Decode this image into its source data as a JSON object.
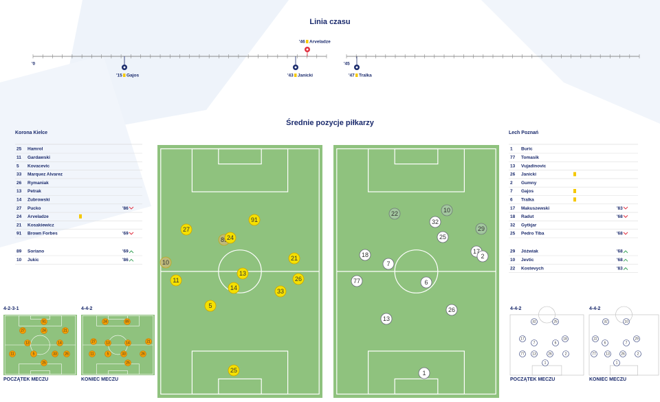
{
  "timeline": {
    "title": "Linia czasu",
    "start": "'0",
    "second_half": "'45",
    "events": [
      {
        "minute": "'15",
        "player": "Gajos",
        "card": true,
        "side": "bottom"
      },
      {
        "minute": "'43",
        "player": "Janicki",
        "card": true,
        "side": "bottom"
      },
      {
        "minute": "'46",
        "player": "Arveladze",
        "card": true,
        "side": "top"
      },
      {
        "minute": "'47",
        "player": "Tralka",
        "card": true,
        "side": "bottom"
      }
    ]
  },
  "positions": {
    "title": "Średnie pozycje piłkarzy"
  },
  "teams": [
    {
      "name": "Korona Kielce",
      "players": [
        {
          "number": 25,
          "name": "Hamrol"
        },
        {
          "number": 11,
          "name": "Gardawski"
        },
        {
          "number": 5,
          "name": "Kovacevic"
        },
        {
          "number": 33,
          "name": "Marquez Alvarez"
        },
        {
          "number": 26,
          "name": "Rymaniak"
        },
        {
          "number": 13,
          "name": "Petrak"
        },
        {
          "number": 14,
          "name": "Zubrowski"
        },
        {
          "number": 27,
          "name": "Pucko",
          "sub": "'86"
        },
        {
          "number": 24,
          "name": "Arveladze",
          "card": true
        },
        {
          "number": 21,
          "name": "Kosakiewicz"
        },
        {
          "number": 91,
          "name": "Brown Forbes",
          "sub": "'69"
        }
      ],
      "subs": [
        {
          "number": 89,
          "name": "Soriano",
          "sub": "'69"
        },
        {
          "number": 10,
          "name": "Jukic",
          "sub": "'86"
        }
      ]
    },
    {
      "name": "Lech Poznań",
      "players": [
        {
          "number": 1,
          "name": "Buric"
        },
        {
          "number": 77,
          "name": "Tomasik"
        },
        {
          "number": 13,
          "name": "Vujadinovic"
        },
        {
          "number": 26,
          "name": "Janicki",
          "card": true
        },
        {
          "number": 2,
          "name": "Gumny"
        },
        {
          "number": 7,
          "name": "Gajos",
          "card": true
        },
        {
          "number": 6,
          "name": "Tralka",
          "card": true
        },
        {
          "number": 17,
          "name": "Makuszewski",
          "sub": "'83"
        },
        {
          "number": 18,
          "name": "Radut",
          "sub": "'68"
        },
        {
          "number": 32,
          "name": "Gytkjar"
        },
        {
          "number": 25,
          "name": "Pedro Tiba",
          "sub": "'68"
        }
      ],
      "subs": [
        {
          "number": 29,
          "name": "Jóźwiak",
          "sub": "'68"
        },
        {
          "number": 10,
          "name": "Jevtic",
          "sub": "'68"
        },
        {
          "number": 22,
          "name": "Kostevych",
          "sub": "'83"
        }
      ]
    }
  ],
  "pitch_markers": [
    [
      {
        "number": 27
      },
      {
        "number": 91
      },
      {
        "number": 89,
        "faded": true
      },
      {
        "number": 24
      },
      {
        "number": 10,
        "faded": true
      },
      {
        "number": 21
      },
      {
        "number": 13
      },
      {
        "number": 11
      },
      {
        "number": 26
      },
      {
        "number": 14
      },
      {
        "number": 33
      },
      {
        "number": 5
      },
      {
        "number": 25
      }
    ],
    [
      {
        "number": 22,
        "faded": true
      },
      {
        "number": 10,
        "faded": true
      },
      {
        "number": 32
      },
      {
        "number": 29,
        "faded": true
      },
      {
        "number": 25
      },
      {
        "number": 18
      },
      {
        "number": 17
      },
      {
        "number": 2
      },
      {
        "number": 7
      },
      {
        "number": 77
      },
      {
        "number": 6
      },
      {
        "number": 26
      },
      {
        "number": 13
      },
      {
        "number": 1
      }
    ]
  ],
  "formations": [
    {
      "label": "4-2-3-1",
      "caption": "POCZĄTEK MECZU",
      "numbers": [
        91,
        27,
        24,
        21,
        13,
        14,
        11,
        5,
        33,
        26,
        25
      ]
    },
    {
      "label": "4-4-2",
      "caption": "KONIEC MECZU",
      "numbers": [
        24,
        89,
        27,
        13,
        14,
        21,
        11,
        5,
        33,
        26,
        25
      ]
    },
    {
      "label": "4-4-2",
      "caption": "POCZĄTEK MECZU",
      "numbers": [
        32,
        25,
        17,
        7,
        6,
        18,
        77,
        13,
        26,
        2,
        1
      ]
    },
    {
      "label": "4-4-2",
      "caption": "KONIEC MECZU",
      "numbers": [
        32,
        10,
        22,
        6,
        7,
        29,
        77,
        13,
        26,
        2,
        1
      ]
    }
  ]
}
